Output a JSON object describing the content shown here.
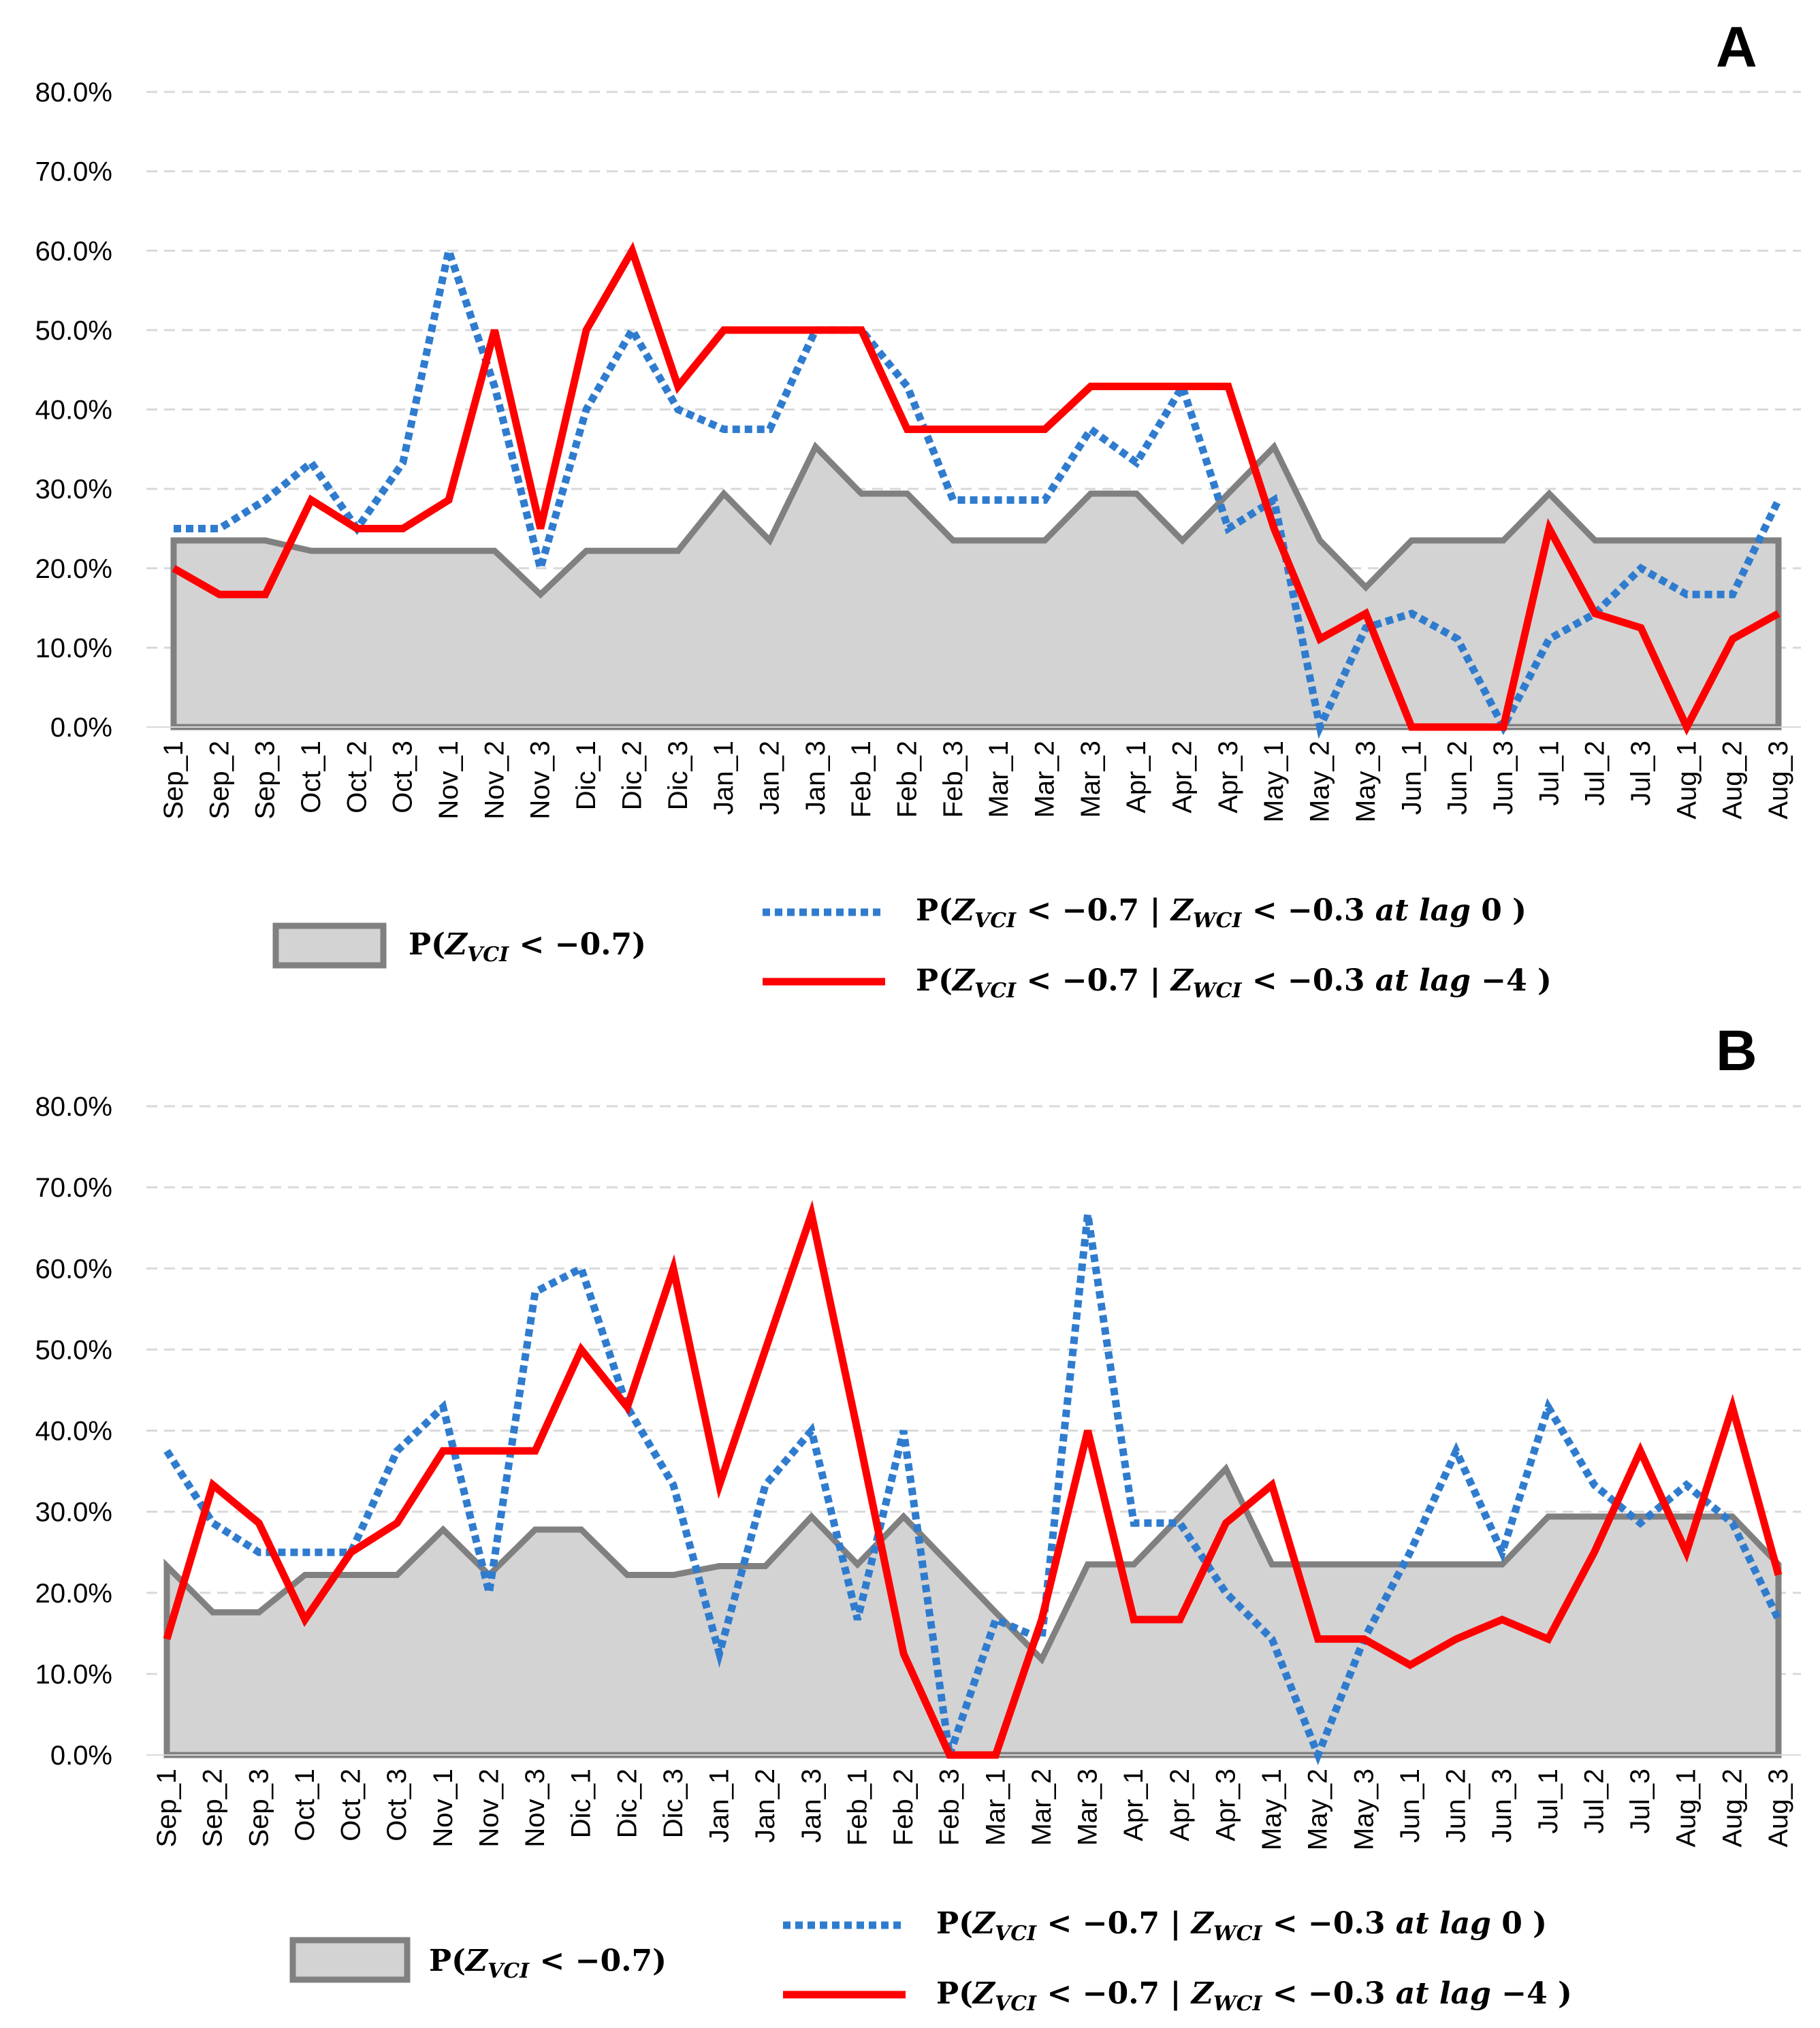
{
  "categories": [
    "Sep_1",
    "Sep_2",
    "Sep_3",
    "Oct_1",
    "Oct_2",
    "Oct_3",
    "Nov_1",
    "Nov_2",
    "Nov_3",
    "Dic_1",
    "Dic_2",
    "Dic_3",
    "Jan_1",
    "Jan_2",
    "Jan_3",
    "Feb_1",
    "Feb_2",
    "Feb_3",
    "Mar_1",
    "Mar_2",
    "Mar_3",
    "Apr_1",
    "Apr_2",
    "Apr_3",
    "May_1",
    "May_2",
    "May_3",
    "Jun_1",
    "Jun_2",
    "Jun_3",
    "Jul_1",
    "Jul_2",
    "Jul_3",
    "Aug_1",
    "Aug_2",
    "Aug_3"
  ],
  "yticks": [
    "0.0%",
    "10.0%",
    "20.0%",
    "30.0%",
    "40.0%",
    "50.0%",
    "60.0%",
    "70.0%",
    "80.0%"
  ],
  "colors": {
    "area_fill": "#d3d3d3",
    "area_stroke": "#808080",
    "lag0": "#2f7ccf",
    "lag4": "#ff0000",
    "grid": "#d9d9d9"
  },
  "legend": {
    "area": {
      "prefix": "P(",
      "var": "Z",
      "sub": "VCI",
      "rest": " < −0.7)"
    },
    "lag0": {
      "prefix": "P(",
      "var": "Z",
      "sub": "VCI",
      "mid": " < −0.7  | ",
      "var2": "Z",
      "sub2": "WCI",
      "rest": " < −0.3  ",
      "it": "at lag",
      "end": " 0 )"
    },
    "lag4": {
      "prefix": "P(",
      "var": "Z",
      "sub": "VCI",
      "mid": " < −0.7  | ",
      "var2": "Z",
      "sub2": "WCI",
      "rest": " < −0.3  ",
      "it": "at lag",
      "end": "  −4 )"
    }
  },
  "chart_data": [
    {
      "panel": "A",
      "type": "line",
      "ylim": [
        0,
        80
      ],
      "ylabel": "",
      "xlabel": "",
      "grid": true,
      "series": [
        {
          "name": "P(Z_VCI < -0.7)",
          "style": "area",
          "values": [
            23.5,
            23.5,
            23.5,
            22.2,
            22.2,
            22.2,
            22.2,
            22.2,
            16.7,
            22.2,
            22.2,
            22.2,
            29.4,
            23.5,
            35.3,
            29.4,
            29.4,
            23.5,
            23.5,
            23.5,
            29.4,
            29.4,
            23.5,
            29.4,
            35.3,
            23.5,
            17.6,
            23.5,
            23.5,
            23.5,
            29.4,
            23.5,
            23.5,
            23.5,
            23.5,
            23.5
          ]
        },
        {
          "name": "P(Z_VCI < -0.7 | Z_WCI < -0.3 at lag 0)",
          "style": "dotted",
          "values": [
            25,
            25,
            28.6,
            33.3,
            25,
            33.3,
            60,
            42.9,
            20,
            40,
            50,
            40,
            37.5,
            37.5,
            50,
            50,
            42.9,
            28.6,
            28.6,
            28.6,
            37.5,
            33.3,
            42.9,
            25,
            28.6,
            0,
            12.5,
            14.3,
            11.1,
            0,
            11.1,
            14.3,
            20,
            16.7,
            16.7,
            28.6
          ]
        },
        {
          "name": "P(Z_VCI < -0.7 | Z_WCI < -0.3 at lag -4)",
          "style": "solid",
          "values": [
            20,
            16.7,
            16.7,
            28.6,
            25,
            25,
            28.6,
            50,
            25,
            50,
            60,
            42.9,
            50,
            50,
            50,
            50,
            37.5,
            37.5,
            37.5,
            37.5,
            42.9,
            42.9,
            42.9,
            42.9,
            25,
            11.1,
            14.3,
            0,
            0,
            0,
            25,
            14.3,
            12.5,
            0,
            11.1,
            14.3
          ]
        }
      ]
    },
    {
      "panel": "B",
      "type": "line",
      "ylim": [
        0,
        80
      ],
      "ylabel": "",
      "xlabel": "",
      "grid": true,
      "series": [
        {
          "name": "P(Z_VCI < -0.7)",
          "style": "area",
          "values": [
            23.3,
            17.6,
            17.6,
            22.2,
            22.2,
            22.2,
            27.8,
            22.2,
            27.8,
            27.8,
            22.2,
            22.2,
            23.3,
            23.3,
            29.4,
            23.5,
            29.4,
            23.5,
            17.6,
            11.8,
            23.5,
            23.5,
            29.4,
            35.3,
            23.5,
            23.5,
            23.5,
            23.5,
            23.5,
            23.5,
            29.4,
            29.4,
            29.4,
            29.4,
            29.4,
            23.5
          ]
        },
        {
          "name": "P(Z_VCI < -0.7 | Z_WCI < -0.3 at lag 0)",
          "style": "dotted",
          "values": [
            37.5,
            28.6,
            25,
            25,
            25,
            37.5,
            42.9,
            20,
            57.1,
            60,
            42.9,
            33.3,
            12.5,
            33.3,
            40,
            16.7,
            40,
            0,
            16.7,
            14.3,
            66.7,
            28.6,
            28.6,
            20,
            14.3,
            0,
            14.3,
            25,
            37.5,
            25,
            42.9,
            33.3,
            28.6,
            33.3,
            28.6,
            16.7
          ]
        },
        {
          "name": "P(Z_VCI < -0.7 | Z_WCI < -0.3 at lag -4)",
          "style": "solid",
          "values": [
            14.3,
            33.3,
            28.6,
            16.7,
            25,
            28.6,
            37.5,
            37.5,
            37.5,
            50,
            42.9,
            60,
            33.3,
            50,
            66.7,
            40,
            12.5,
            0,
            0,
            16.7,
            40,
            16.7,
            16.7,
            28.6,
            33.3,
            14.3,
            14.3,
            11.1,
            14.3,
            16.7,
            14.3,
            25,
            37.5,
            25,
            42.9,
            22.2
          ]
        }
      ]
    }
  ]
}
